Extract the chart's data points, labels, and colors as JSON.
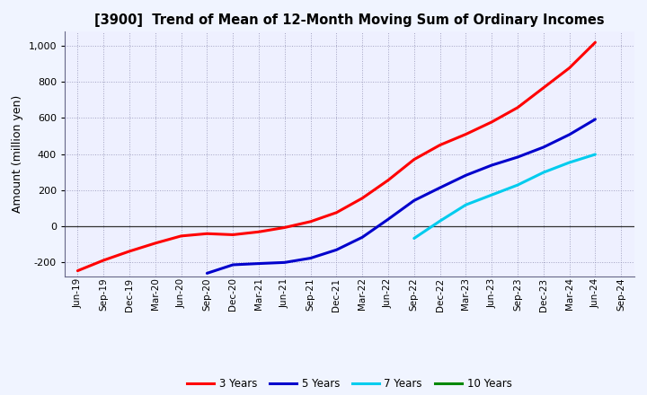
{
  "title": "[3900]  Trend of Mean of 12-Month Moving Sum of Ordinary Incomes",
  "ylabel": "Amount (million yen)",
  "background_color": "#f0f0ff",
  "plot_bg_color": "#eeeeff",
  "grid_color": "#8888aa",
  "tick_labels": [
    "Jun-19",
    "Sep-19",
    "Dec-19",
    "Mar-20",
    "Jun-20",
    "Sep-20",
    "Dec-20",
    "Mar-21",
    "Jun-21",
    "Sep-21",
    "Dec-21",
    "Mar-22",
    "Jun-22",
    "Sep-22",
    "Dec-22",
    "Mar-23",
    "Jun-23",
    "Sep-23",
    "Dec-23",
    "Mar-24",
    "Jun-24",
    "Sep-24"
  ],
  "ylim": [
    -280,
    1080
  ],
  "yticks": [
    -200,
    0,
    200,
    400,
    600,
    800,
    1000
  ],
  "series": {
    "3 Years": {
      "color": "#ff0000",
      "values": [
        -248,
        -190,
        -140,
        -95,
        -55,
        -42,
        -48,
        -32,
        -8,
        25,
        75,
        155,
        255,
        370,
        450,
        510,
        578,
        658,
        768,
        878,
        1020,
        null
      ]
    },
    "5 Years": {
      "color": "#0000cc",
      "values": [
        null,
        null,
        null,
        null,
        null,
        -262,
        -215,
        -208,
        -202,
        -178,
        -132,
        -62,
        38,
        142,
        213,
        282,
        338,
        383,
        438,
        508,
        593,
        null
      ]
    },
    "7 Years": {
      "color": "#00ccee",
      "values": [
        null,
        null,
        null,
        null,
        null,
        null,
        null,
        null,
        null,
        null,
        null,
        null,
        null,
        -68,
        28,
        118,
        173,
        228,
        298,
        353,
        398,
        null
      ]
    },
    "10 Years": {
      "color": "#008800",
      "values": [
        null,
        null,
        null,
        null,
        null,
        null,
        null,
        null,
        null,
        null,
        null,
        null,
        null,
        null,
        null,
        null,
        null,
        null,
        null,
        null,
        null,
        null
      ]
    }
  },
  "legend_labels": [
    "3 Years",
    "5 Years",
    "7 Years",
    "10 Years"
  ]
}
